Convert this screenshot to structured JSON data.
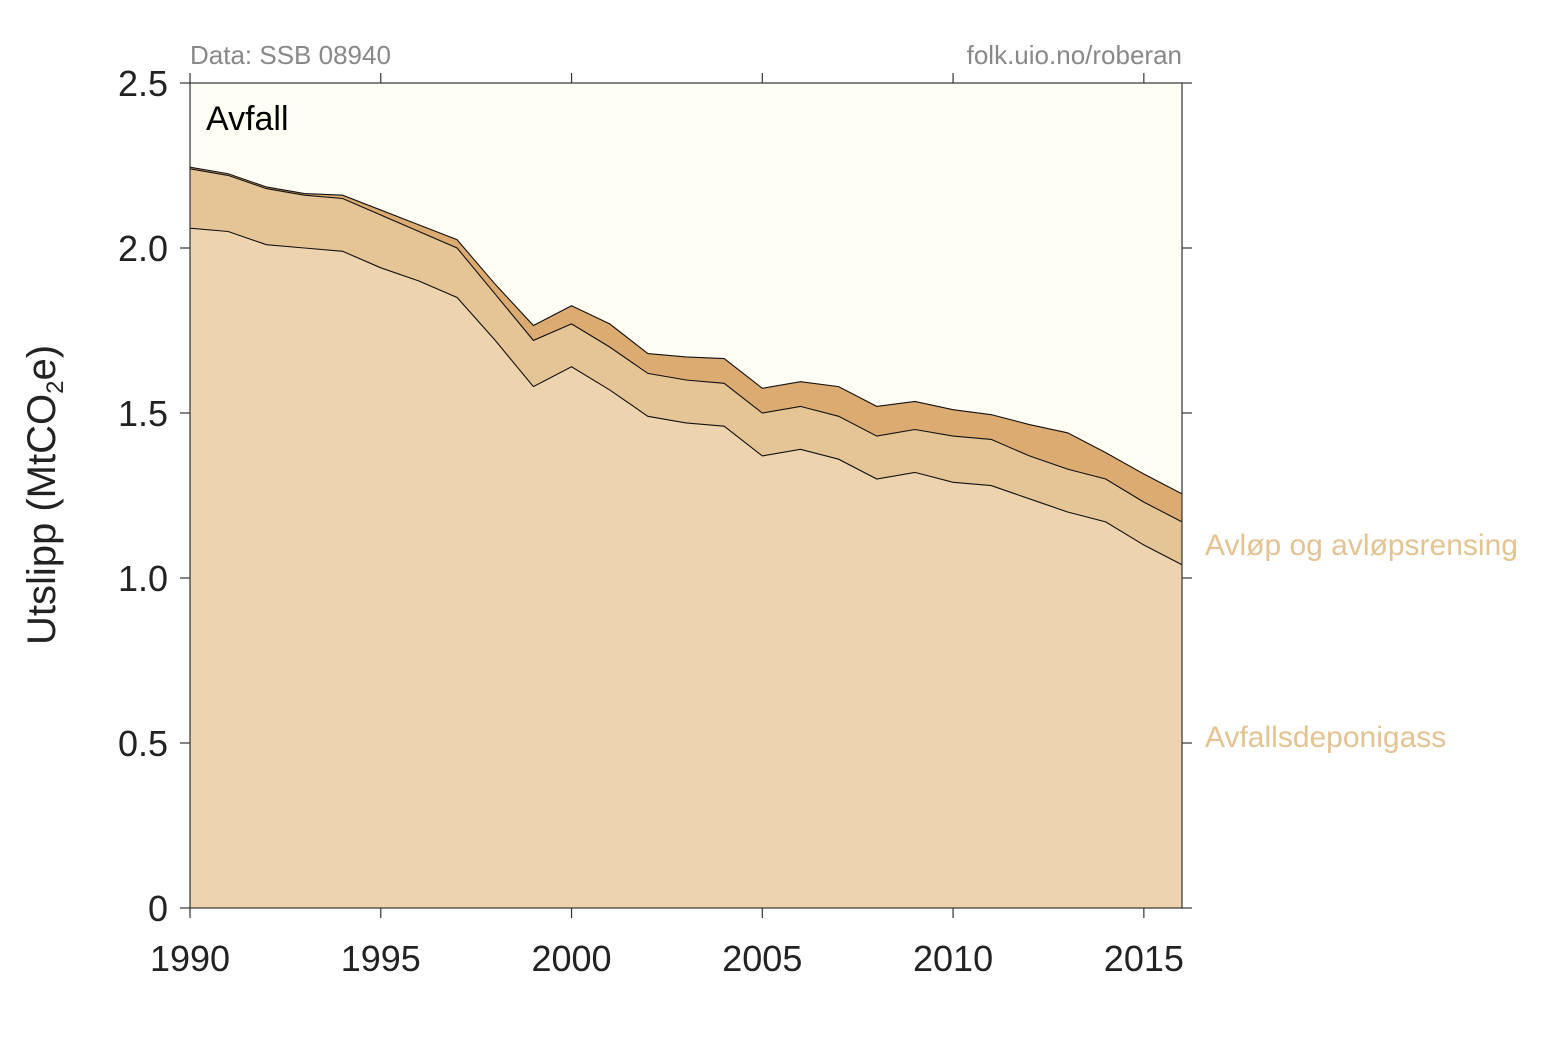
{
  "chart_data": {
    "type": "area",
    "stacked": true,
    "panel_title": "Avfall",
    "source_left": "Data: SSB 08940",
    "source_right": "folk.uio.no/roberan",
    "ylabel_main": "Utslipp (MtCO",
    "ylabel_sub": "2",
    "ylabel_end": "e)",
    "xlabel": "",
    "xlim": [
      1990,
      2016
    ],
    "ylim": [
      0,
      2.5
    ],
    "x_ticks": [
      1990,
      1995,
      2000,
      2005,
      2010,
      2015
    ],
    "x_tick_labels": [
      "1990",
      "1995",
      "2000",
      "2005",
      "2010",
      "2015"
    ],
    "y_ticks": [
      0,
      0.5,
      1.0,
      1.5,
      2.0,
      2.5
    ],
    "y_tick_labels": [
      "0",
      "0.5",
      "1.0",
      "1.5",
      "2.0",
      "2.5"
    ],
    "background_color": "#fffef5",
    "x": [
      1990,
      1991,
      1992,
      1993,
      1994,
      1995,
      1996,
      1997,
      1998,
      1999,
      2000,
      2001,
      2002,
      2003,
      2004,
      2005,
      2006,
      2007,
      2008,
      2009,
      2010,
      2011,
      2012,
      2013,
      2014,
      2015,
      2016
    ],
    "series": [
      {
        "name": "Avfallsdeponigass",
        "color": "#edd4ae",
        "label_color": "#e3c391",
        "values": [
          2.06,
          2.05,
          2.01,
          2.0,
          1.99,
          1.94,
          1.9,
          1.85,
          1.72,
          1.58,
          1.64,
          1.57,
          1.49,
          1.47,
          1.46,
          1.37,
          1.39,
          1.36,
          1.3,
          1.32,
          1.29,
          1.28,
          1.24,
          1.2,
          1.17,
          1.1,
          1.04
        ]
      },
      {
        "name": "Avløp og avløpsrensing",
        "color": "#e5c596",
        "label_color": "#e3c391",
        "values": [
          0.18,
          0.17,
          0.17,
          0.16,
          0.16,
          0.16,
          0.15,
          0.15,
          0.14,
          0.14,
          0.13,
          0.13,
          0.13,
          0.13,
          0.13,
          0.13,
          0.13,
          0.13,
          0.13,
          0.13,
          0.14,
          0.14,
          0.13,
          0.13,
          0.13,
          0.13,
          0.13
        ]
      },
      {
        "name": "",
        "color": "#dcab72",
        "values": [
          0.005,
          0.005,
          0.005,
          0.005,
          0.01,
          0.015,
          0.02,
          0.025,
          0.03,
          0.045,
          0.055,
          0.07,
          0.06,
          0.07,
          0.075,
          0.075,
          0.075,
          0.09,
          0.09,
          0.085,
          0.08,
          0.075,
          0.095,
          0.11,
          0.08,
          0.085,
          0.085
        ]
      }
    ]
  }
}
